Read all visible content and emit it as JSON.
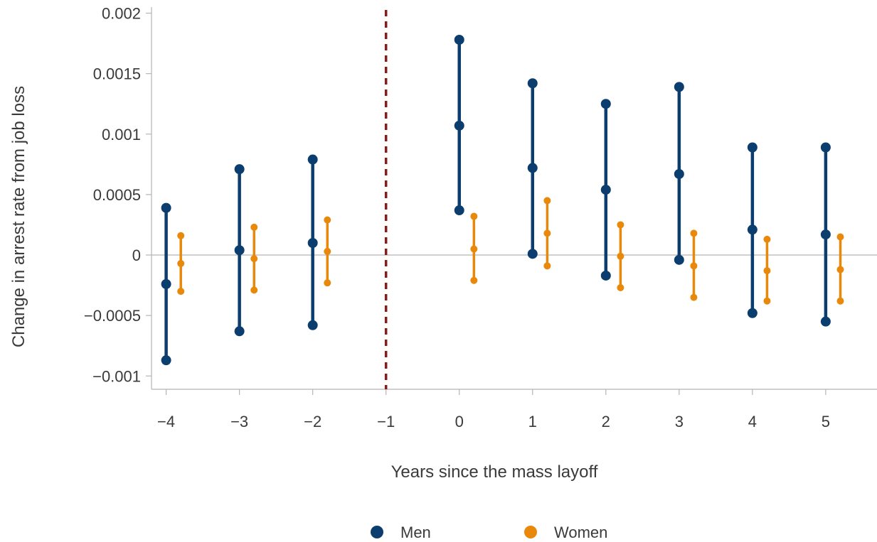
{
  "chart_data": {
    "type": "scatter",
    "subtype": "error-bar",
    "xlabel": "Years since the mass layoff",
    "ylabel": "Change in arrest rate from job loss",
    "x": [
      -4,
      -3,
      -2,
      -1,
      0,
      1,
      2,
      3,
      4,
      5
    ],
    "x_tick_labels": [
      "−4",
      "−3",
      "−2",
      "−1",
      "0",
      "1",
      "2",
      "3",
      "4",
      "5"
    ],
    "y_ticks": [
      -0.001,
      -0.0005,
      0,
      0.0005,
      0.001,
      0.0015,
      0.002
    ],
    "y_tick_labels": [
      "−0.001",
      "−0.0005",
      "0",
      "0.0005",
      "0.001",
      "0.0015",
      "0.002"
    ],
    "ylim": [
      -0.00111,
      0.00205
    ],
    "xlim": [
      -4.2,
      5.7
    ],
    "reference_line": {
      "x": -1,
      "style": "dashed",
      "color": "#8b1a1a"
    },
    "zero_line": true,
    "grid": false,
    "legend_position": "bottom-center",
    "series": [
      {
        "name": "Men",
        "color": "#0b3e6e",
        "x": [
          -4,
          -3,
          -2,
          0,
          1,
          2,
          3,
          4,
          5
        ],
        "point": [
          -0.00024,
          4e-05,
          0.0001,
          0.00107,
          0.00072,
          0.00054,
          0.00067,
          0.00021,
          0.00017
        ],
        "lower": [
          -0.00087,
          -0.00063,
          -0.00058,
          0.00037,
          1e-05,
          -0.00017,
          -4e-05,
          -0.00048,
          -0.00055
        ],
        "upper": [
          0.00039,
          0.00071,
          0.00079,
          0.00178,
          0.00142,
          0.00125,
          0.00139,
          0.00089,
          0.00089
        ]
      },
      {
        "name": "Women",
        "color": "#e8890c",
        "x": [
          -4,
          -3,
          -2,
          0,
          1,
          2,
          3,
          4,
          5
        ],
        "point": [
          -7e-05,
          -3e-05,
          3e-05,
          5e-05,
          0.00018,
          -1e-05,
          -9e-05,
          -0.00013,
          -0.00012
        ],
        "lower": [
          -0.0003,
          -0.00029,
          -0.00023,
          -0.00021,
          -9e-05,
          -0.00027,
          -0.00035,
          -0.00038,
          -0.00038
        ],
        "upper": [
          0.00016,
          0.00023,
          0.00029,
          0.00032,
          0.00045,
          0.00025,
          0.00018,
          0.00013,
          0.00015
        ]
      }
    ]
  }
}
